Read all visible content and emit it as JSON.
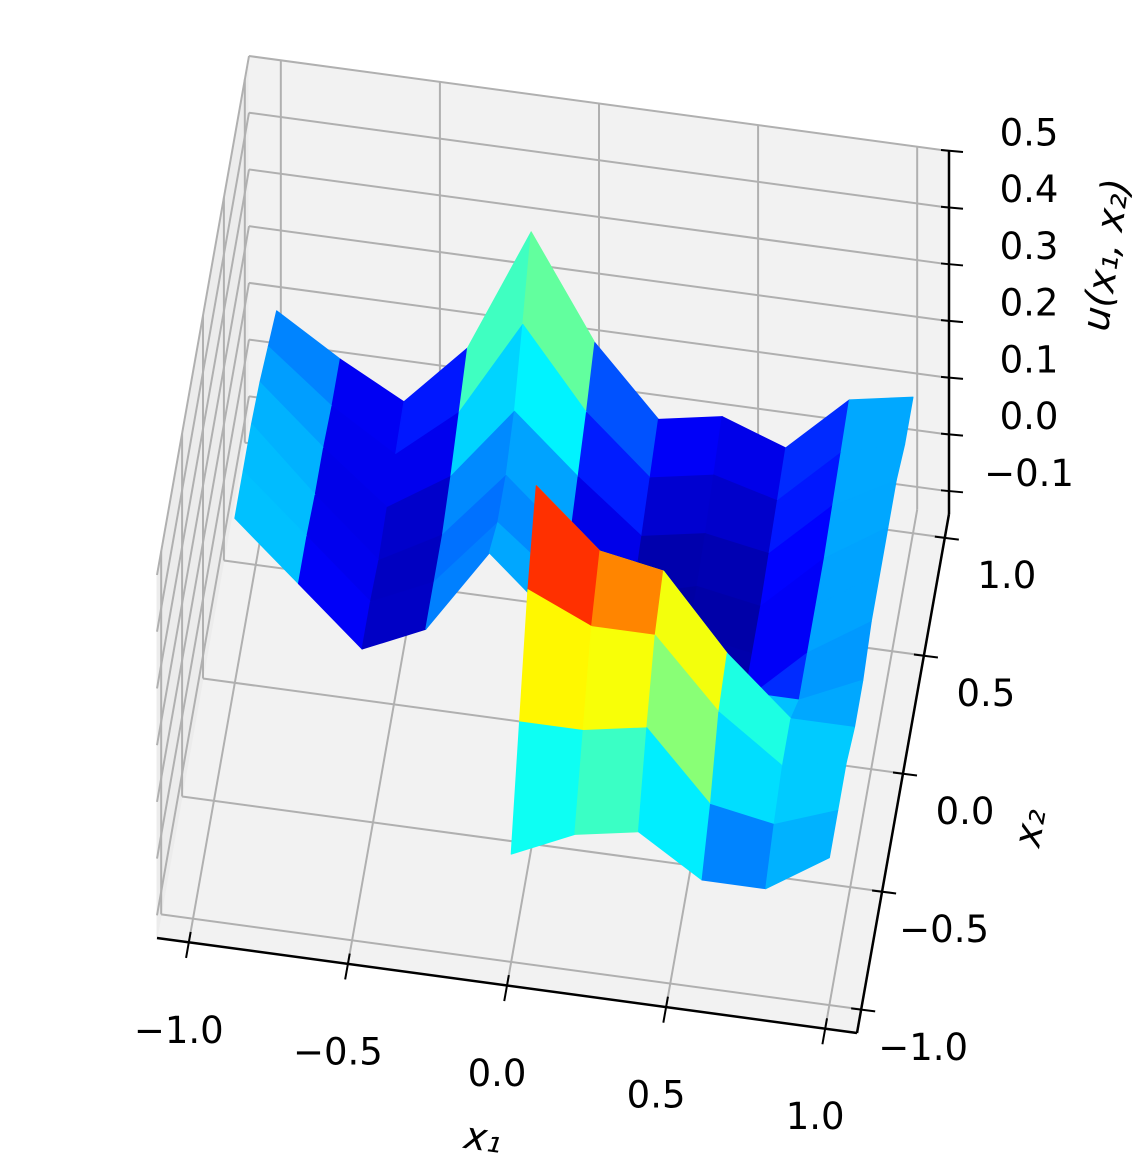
{
  "chart_data": {
    "type": "surface3d",
    "x_label": "x₁",
    "y_label": "x₂",
    "z_label": "u(x₁, x₂)",
    "colormap": "jet",
    "x": [
      -1,
      -0.8,
      -0.6,
      -0.4,
      -0.2,
      0,
      0.2,
      0.4,
      0.6,
      0.8,
      1
    ],
    "y": [
      -1,
      -0.8,
      -0.6,
      -0.4,
      -0.2,
      0,
      0.2,
      0.4,
      0.6,
      0.8,
      1
    ],
    "z": [
      [
        null,
        null,
        null,
        null,
        null,
        0.05,
        0.1,
        0.12,
        0.05,
        0.05,
        0.12
      ],
      [
        null,
        null,
        null,
        null,
        null,
        0.2,
        0.2,
        0.22,
        0.1,
        0.08,
        0.12
      ],
      [
        null,
        null,
        null,
        null,
        null,
        0.35,
        0.3,
        0.3,
        0.18,
        0.1,
        0.12
      ],
      [
        null,
        null,
        null,
        null,
        null,
        0.45,
        0.35,
        0.33,
        0.2,
        0.1,
        0.1
      ],
      [
        null,
        null,
        null,
        null,
        null,
        0.3,
        0.15,
        0.15,
        0.05,
        0.05,
        0.1
      ],
      [
        0.15,
        0.05,
        -0.05,
        0.0,
        0.15,
        0.05,
        -0.05,
        -0.02,
        -0.05,
        0.05,
        0.12
      ],
      [
        0.15,
        0.05,
        -0.05,
        0.0,
        0.12,
        0.03,
        -0.05,
        -0.03,
        -0.05,
        0.05,
        0.12
      ],
      [
        0.15,
        0.04,
        -0.06,
        0.0,
        0.12,
        0.02,
        -0.06,
        -0.03,
        -0.05,
        0.05,
        0.12
      ],
      [
        0.14,
        0.04,
        -0.05,
        0.02,
        0.15,
        0.05,
        -0.04,
        -0.02,
        -0.04,
        0.06,
        0.12
      ],
      [
        0.12,
        0.03,
        -0.04,
        0.05,
        0.22,
        0.08,
        -0.02,
        0.0,
        -0.03,
        0.07,
        0.1
      ],
      [
        0.1,
        0.03,
        -0.03,
        0.08,
        0.3,
        0.12,
        0.0,
        0.02,
        -0.02,
        0.08,
        0.1
      ]
    ],
    "xlim": [
      -1.1,
      1.1
    ],
    "ylim": [
      -1.1,
      1.1
    ],
    "zlim": [
      -0.14,
      0.5
    ],
    "xticks": [
      {
        "value": -1,
        "label": "−1.0"
      },
      {
        "value": -0.5,
        "label": "−0.5"
      },
      {
        "value": 0,
        "label": "0.0"
      },
      0.5,
      {
        "value": 1,
        "label": "1.0"
      }
    ],
    "yticks": [
      {
        "value": -1,
        "label": "−1.0"
      },
      {
        "value": -0.5,
        "label": "−0.5"
      },
      {
        "value": 0,
        "label": "0.0"
      },
      0.5,
      {
        "value": 1,
        "label": "1.0"
      }
    ],
    "zticks": [
      {
        "value": -0.1,
        "label": "−0.1"
      },
      {
        "value": 0,
        "label": "0.0"
      },
      0.1,
      0.2,
      0.3,
      0.4,
      0.5
    ],
    "grid": true
  }
}
